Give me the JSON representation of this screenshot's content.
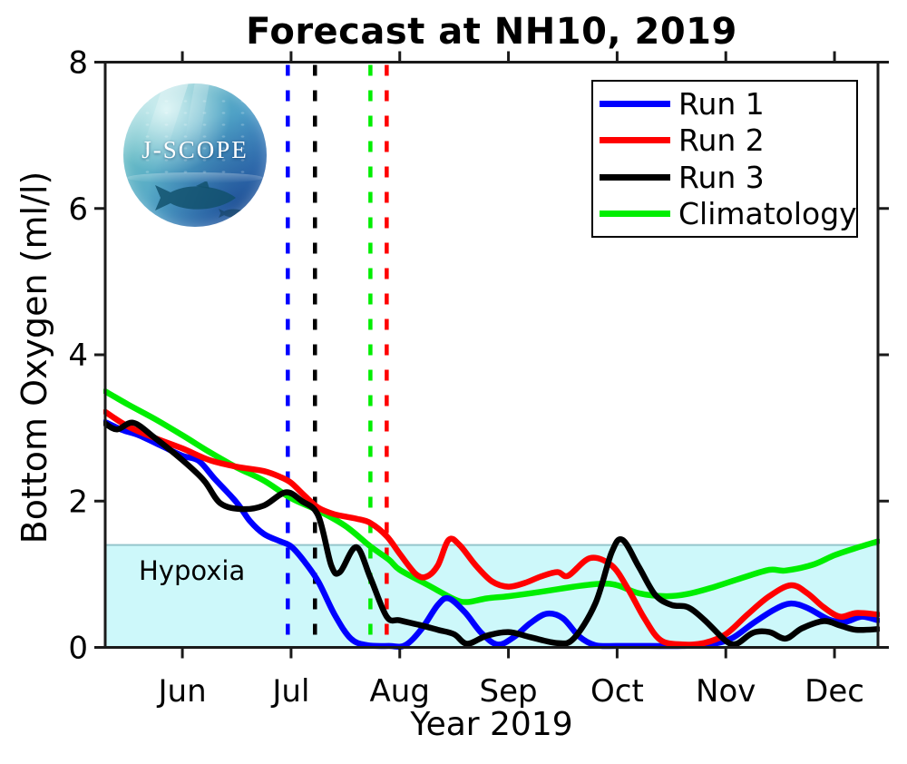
{
  "title": "Forecast at NH10, 2019",
  "logo": {
    "text": "J-SCOPE"
  },
  "annotations": {
    "hypoxia_label": "Hypoxia"
  },
  "chart_data": {
    "type": "line",
    "title": "Forecast at NH10, 2019",
    "xlabel": "Year 2019",
    "ylabel": "Bottom Oxygen (ml/l)",
    "x_unit": "month-of-2019 decimal (6=Jun 1, 12=Dec 1)",
    "xlim": [
      5.29,
      12.4
    ],
    "ylim": [
      0,
      8
    ],
    "y_ticks": [
      0,
      2,
      4,
      6,
      8
    ],
    "x_ticks": [
      6,
      7,
      8,
      9,
      10,
      11,
      12
    ],
    "x_ticklabels": [
      "Jun",
      "Jul",
      "Aug",
      "Sep",
      "Oct",
      "Nov",
      "Dec"
    ],
    "grid": false,
    "legend_position": "upper right",
    "hypoxia_threshold": 1.4,
    "hypoxia_fill": "#CDF8FA",
    "hypoxia_edge": "#95C5CB",
    "axis_color": "#1a1a1a",
    "series": [
      {
        "name": "Run 1",
        "color": "#0000FF",
        "x": [
          5.29,
          5.45,
          5.6,
          5.8,
          6.0,
          6.15,
          6.3,
          6.5,
          6.62,
          6.75,
          6.9,
          7.0,
          7.12,
          7.25,
          7.4,
          7.55,
          7.7,
          7.9,
          8.05,
          8.2,
          8.35,
          8.45,
          8.6,
          8.75,
          8.9,
          9.05,
          9.2,
          9.35,
          9.5,
          9.65,
          9.8,
          10.0,
          10.3,
          10.6,
          10.85,
          11.05,
          11.25,
          11.45,
          11.6,
          11.75,
          11.95,
          12.1,
          12.25,
          12.4
        ],
        "y": [
          3.08,
          2.97,
          2.9,
          2.76,
          2.62,
          2.55,
          2.3,
          1.98,
          1.73,
          1.55,
          1.45,
          1.38,
          1.18,
          0.9,
          0.45,
          0.12,
          0.03,
          0.02,
          0.03,
          0.25,
          0.58,
          0.67,
          0.48,
          0.2,
          0.04,
          0.14,
          0.33,
          0.46,
          0.4,
          0.15,
          0.03,
          0.02,
          0.02,
          0.02,
          0.04,
          0.12,
          0.33,
          0.52,
          0.6,
          0.54,
          0.38,
          0.35,
          0.42,
          0.37
        ]
      },
      {
        "name": "Run 2",
        "color": "#FF0000",
        "x": [
          5.29,
          5.5,
          5.75,
          6.0,
          6.25,
          6.5,
          6.75,
          6.9,
          7.0,
          7.12,
          7.25,
          7.4,
          7.6,
          7.73,
          7.88,
          8.0,
          8.15,
          8.25,
          8.35,
          8.45,
          8.55,
          8.7,
          8.85,
          9.0,
          9.15,
          9.3,
          9.45,
          9.55,
          9.75,
          9.95,
          10.1,
          10.25,
          10.4,
          10.6,
          10.8,
          11.0,
          11.2,
          11.4,
          11.6,
          11.75,
          11.9,
          12.05,
          12.2,
          12.4
        ],
        "y": [
          3.22,
          3.02,
          2.86,
          2.72,
          2.56,
          2.47,
          2.41,
          2.33,
          2.25,
          2.08,
          1.91,
          1.82,
          1.76,
          1.7,
          1.52,
          1.28,
          1.0,
          0.97,
          1.12,
          1.47,
          1.4,
          1.12,
          0.9,
          0.83,
          0.88,
          0.97,
          1.03,
          0.98,
          1.22,
          1.12,
          0.8,
          0.4,
          0.1,
          0.04,
          0.06,
          0.18,
          0.45,
          0.7,
          0.85,
          0.74,
          0.55,
          0.42,
          0.47,
          0.45
        ]
      },
      {
        "name": "Run 3",
        "color": "#000000",
        "x": [
          5.29,
          5.4,
          5.55,
          5.75,
          6.0,
          6.2,
          6.35,
          6.55,
          6.75,
          6.95,
          7.1,
          7.25,
          7.37,
          7.45,
          7.6,
          7.73,
          7.88,
          8.0,
          8.2,
          8.35,
          8.5,
          8.62,
          8.8,
          9.0,
          9.2,
          9.45,
          9.6,
          9.8,
          9.95,
          10.05,
          10.2,
          10.35,
          10.5,
          10.65,
          10.8,
          11.0,
          11.1,
          11.25,
          11.4,
          11.55,
          11.7,
          11.9,
          12.05,
          12.2,
          12.4
        ],
        "y": [
          3.06,
          2.98,
          3.07,
          2.86,
          2.56,
          2.28,
          1.97,
          1.89,
          1.94,
          2.12,
          2.0,
          1.8,
          1.12,
          1.03,
          1.37,
          0.95,
          0.42,
          0.37,
          0.3,
          0.24,
          0.18,
          0.05,
          0.16,
          0.21,
          0.14,
          0.06,
          0.12,
          0.6,
          1.3,
          1.47,
          1.1,
          0.72,
          0.58,
          0.55,
          0.38,
          0.09,
          0.05,
          0.2,
          0.21,
          0.12,
          0.26,
          0.36,
          0.3,
          0.24,
          0.25
        ]
      },
      {
        "name": "Climatology",
        "color": "#00EE00",
        "x": [
          5.29,
          5.5,
          5.75,
          6.0,
          6.25,
          6.5,
          6.75,
          7.0,
          7.25,
          7.5,
          7.73,
          7.9,
          8.0,
          8.25,
          8.5,
          8.62,
          8.8,
          9.0,
          9.3,
          9.6,
          9.85,
          10.0,
          10.2,
          10.45,
          10.65,
          10.9,
          11.15,
          11.4,
          11.55,
          11.8,
          12.0,
          12.2,
          12.4
        ],
        "y": [
          3.5,
          3.32,
          3.12,
          2.9,
          2.67,
          2.46,
          2.28,
          2.04,
          1.87,
          1.66,
          1.38,
          1.2,
          1.06,
          0.86,
          0.66,
          0.62,
          0.67,
          0.7,
          0.76,
          0.83,
          0.87,
          0.85,
          0.74,
          0.7,
          0.73,
          0.83,
          0.95,
          1.06,
          1.05,
          1.13,
          1.26,
          1.36,
          1.45
        ]
      }
    ],
    "vlines": [
      {
        "x": 6.97,
        "color": "#0000FF",
        "style": "dashed"
      },
      {
        "x": 7.22,
        "color": "#000000",
        "style": "dashed"
      },
      {
        "x": 7.73,
        "color": "#00EE00",
        "style": "dashed"
      },
      {
        "x": 7.88,
        "color": "#FF0000",
        "style": "dashed"
      }
    ]
  }
}
